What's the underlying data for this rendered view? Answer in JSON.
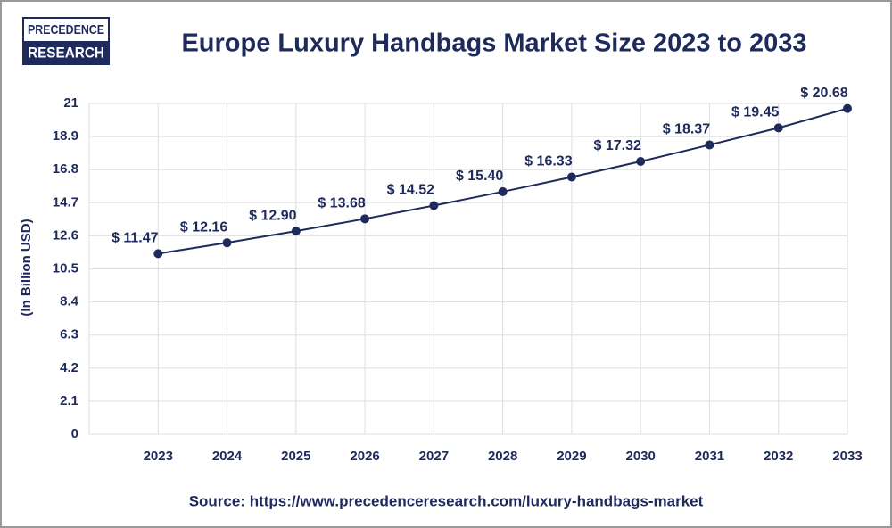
{
  "logo": {
    "line1": "PRECEDENCE",
    "line2": "RESEARCH"
  },
  "chart_data": {
    "type": "line",
    "title": "Europe Luxury Handbags Market Size 2023 to 2033",
    "y_label": "(In Billion USD)",
    "categories": [
      "2023",
      "2024",
      "2025",
      "2026",
      "2027",
      "2028",
      "2029",
      "2030",
      "2031",
      "2032",
      "2033"
    ],
    "values": [
      11.47,
      12.16,
      12.9,
      13.68,
      14.52,
      15.4,
      16.33,
      17.32,
      18.37,
      19.45,
      20.68
    ],
    "value_labels": [
      "$ 11.47",
      "$ 12.16",
      "$ 12.90",
      "$ 13.68",
      "$ 14.52",
      "$ 15.40",
      "$ 16.33",
      "$ 17.32",
      "$ 18.37",
      "$ 19.45",
      "$ 20.68"
    ],
    "color": "#1f2a5c",
    "ylim": [
      0,
      21
    ],
    "yticks": [
      0,
      2.1,
      4.2,
      6.3,
      8.4,
      10.5,
      12.6,
      14.7,
      16.8,
      18.9,
      21
    ],
    "grid": true,
    "source": "Source: https://www.precedenceresearch.com/luxury-handbags-market"
  }
}
